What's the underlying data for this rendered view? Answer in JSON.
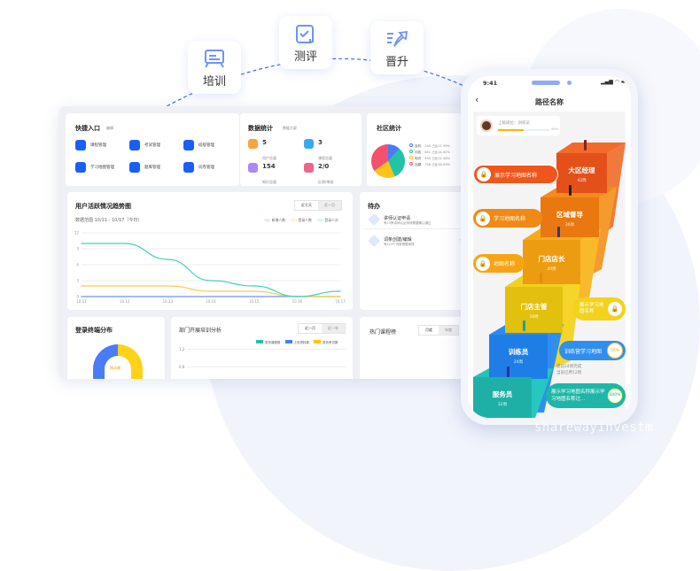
{
  "top_nodes": [
    {
      "label": "培训",
      "icon": "whiteboard-icon"
    },
    {
      "label": "测评",
      "icon": "clipboard-check-icon"
    },
    {
      "label": "晋升",
      "icon": "rising-arrow-icon"
    }
  ],
  "quick_entry": {
    "title": "快捷入口",
    "edit": "编辑",
    "items": [
      "课程管理",
      "考试管理",
      "班级管理",
      "学习地图管理",
      "题库管理",
      "问卷管理"
    ]
  },
  "data_stats": {
    "title": "数据统计",
    "link": "数据大屏",
    "items": [
      {
        "value": "5",
        "label": "用户总量",
        "color": "#f7a53c"
      },
      {
        "value": "3",
        "label": "课程总量",
        "color": "#3aa9f0"
      },
      {
        "value": "154",
        "label": "知识总量",
        "color": "#a98af0"
      },
      {
        "value": "2/0",
        "label": "反馈/审核",
        "color": "#f0648c"
      }
    ]
  },
  "community": {
    "title": "社区统计",
    "items": [
      {
        "name": "百科",
        "text": "243 占比11.99%",
        "value": 243,
        "color": "#4a7cf7"
      },
      {
        "name": "问答",
        "text": "641 占比31.62%",
        "value": 641,
        "color": "#22c3a6"
      },
      {
        "name": "知识",
        "text": "435 占比21.46%",
        "value": 435,
        "color": "#ffc21a"
      },
      {
        "name": "话题",
        "text": "708 占比34.93%",
        "value": 708,
        "color": "#f4516c"
      }
    ]
  },
  "activity": {
    "title": "用户活跃情况趋势图",
    "range": "数据范围 10/11 - 10/17（今日）",
    "tabs": [
      "近七天",
      "近一月"
    ]
  },
  "chart_data": {
    "type": "line",
    "categories": [
      "10.11",
      "10.12",
      "10.13",
      "10.14",
      "10.15",
      "10.16",
      "10.17"
    ],
    "ylim": [
      0,
      12
    ],
    "yticks": [
      0,
      3,
      6,
      9,
      12
    ],
    "series": [
      {
        "name": "新增人数",
        "color": "#6f93f5",
        "values": [
          0,
          0,
          0,
          0,
          0,
          0,
          0
        ]
      },
      {
        "name": "登录人数",
        "color": "#f7cc4a",
        "values": [
          2,
          2,
          2,
          1,
          1,
          0,
          0
        ]
      },
      {
        "name": "登录人次",
        "color": "#3fd3b6",
        "values": [
          10,
          10,
          7,
          3,
          2,
          0,
          1
        ]
      }
    ]
  },
  "todo": {
    "title": "待办",
    "items": [
      {
        "title": "讲师认证申请",
        "desc": "有13条讲师认证申请需要确认通过",
        "count": "13"
      },
      {
        "title": "词条创建/编辑",
        "desc": "有113个词条需要审核",
        "count": "113"
      }
    ]
  },
  "login_terminal": {
    "title": "登录终端分布",
    "center": "移动端"
  },
  "dept_training": {
    "title": "部门开展培训分析",
    "tabs": [
      "近一月",
      "近一年"
    ],
    "legend": [
      {
        "name": "发布课程数",
        "color": "#22c3a6"
      },
      {
        "name": "上传资料数",
        "color": "#4a7cf7"
      },
      {
        "name": "发布考试数",
        "color": "#ffc21a"
      }
    ],
    "yticks": [
      "1.2",
      "0.8"
    ]
  },
  "hot_courses": {
    "title": "热门课程榜",
    "tabs": [
      "月度",
      "年度"
    ]
  },
  "phone": {
    "time": "9:41",
    "title": "路径名称",
    "user": {
      "position": "上级岗位：训练员",
      "progress_text": "50%",
      "progress": 0.5
    },
    "steps": [
      {
        "name": "大区经理",
        "weeks": "42周"
      },
      {
        "name": "区域督导",
        "weeks": "36周"
      },
      {
        "name": "门店店长",
        "weeks": "20周"
      },
      {
        "name": "门店主管",
        "weeks": "28周"
      },
      {
        "name": "训练员",
        "weeks": "24周"
      },
      {
        "name": "服务员",
        "weeks": "32周"
      }
    ],
    "maps": [
      {
        "label": "展示学习地图名称"
      },
      {
        "label": "学习地图名称"
      },
      {
        "label": "地图名称"
      },
      {
        "label": "展示学习地图名称"
      },
      {
        "label": "训练营学习地图",
        "percent": "50%"
      },
      {
        "label": "展示学习地图名称展示学习地图名称过...",
        "percent": "100%"
      }
    ],
    "hint": [
      "建议24周完成",
      "当前已用12周"
    ]
  },
  "watermark": "sharewayinvestm"
}
